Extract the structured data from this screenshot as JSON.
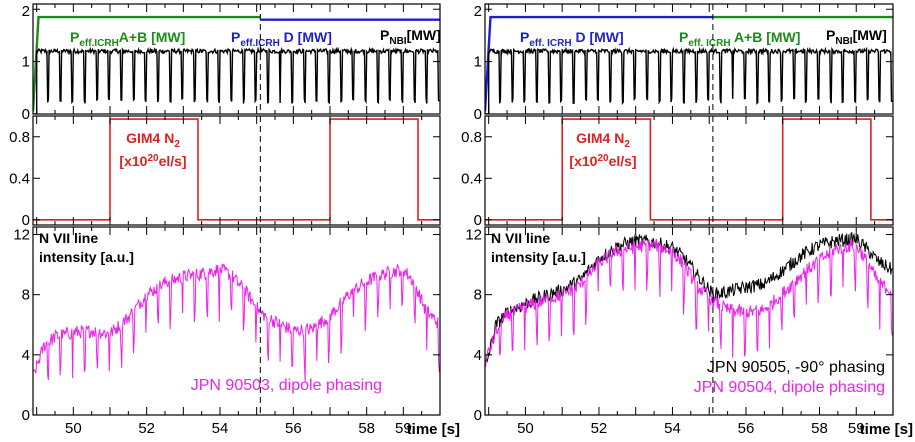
{
  "chart_data": [
    {
      "type": "line",
      "title": "",
      "x_axis": {
        "label": "time [s]",
        "range": [
          48.9,
          60.0
        ],
        "ticks": [
          50,
          52,
          54,
          56,
          58,
          59
        ],
        "tick_labels": [
          "50",
          "52",
          "54",
          "56",
          "58",
          "59"
        ],
        "grid": false
      },
      "marker_line": {
        "x": 55.1,
        "style": "dashed"
      },
      "panels": [
        {
          "id": "power",
          "ylim": [
            0,
            2.1
          ],
          "yticks": [
            0,
            1,
            2
          ],
          "ytick_labels": [
            "0",
            "1",
            "2"
          ],
          "annotations": [
            {
              "base": "P",
              "sub": "eff.ICRH",
              "after": "A+B [MW]",
              "color": "#1a8c1a"
            },
            {
              "base": "P",
              "sub": "eff.ICRH",
              "after": " D [MW]",
              "color": "#1f1fcf"
            },
            {
              "base": "P",
              "sub": "NBI",
              "after": "[MW]",
              "color": "#000000"
            }
          ],
          "series": [
            {
              "label": "P_eff.ICRH A+B",
              "color": "#1a8c1a",
              "segments": [
                {
                  "x": [
                    48.9,
                    49.05,
                    55.1
                  ],
                  "y": [
                    0.05,
                    1.85,
                    1.85
                  ]
                }
              ]
            },
            {
              "label": "P_eff.ICRH D",
              "color": "#1f1fcf",
              "segments": [
                {
                  "x": [
                    55.1,
                    60.0
                  ],
                  "y": [
                    1.8,
                    1.8
                  ]
                }
              ]
            },
            {
              "label": "P_NBI",
              "color": "#000000",
              "baseline": 1.2,
              "notch_min": 0.2,
              "notch_period": 0.333,
              "start": 49.0
            }
          ]
        },
        {
          "id": "gas",
          "ylim": [
            -0.05,
            1.0
          ],
          "yticks": [
            0,
            0.4,
            0.8
          ],
          "ytick_labels": [
            "0",
            "0.4",
            "0.8"
          ],
          "annotations": [
            {
              "line1": "GIM4 N",
              "line1_sub": "2",
              "line2_pre": "[x10",
              "line2_sup": "20",
              "line2_post": "el/s]",
              "color": "#e02020"
            }
          ],
          "series": [
            {
              "label": "GIM4 N2",
              "color": "#e02020",
              "x": [
                48.9,
                51.0,
                51.0,
                53.4,
                53.4,
                57.0,
                57.0,
                59.4,
                59.4,
                60.0
              ],
              "y": [
                0,
                0,
                0.97,
                0.97,
                0,
                0,
                0.97,
                0.97,
                0,
                0
              ]
            }
          ]
        },
        {
          "id": "nvii",
          "ylim": [
            0,
            12.5
          ],
          "yticks": [
            0,
            4,
            8,
            12
          ],
          "ytick_labels": [
            "0",
            "4",
            "8",
            "12"
          ],
          "annotations": [
            {
              "line1": "N VII line",
              "line2": "intensity [a.u.]",
              "color": "#000000"
            }
          ],
          "series": [
            {
              "label": "JPN 90503, dipole phasing",
              "color": "#ee22ee",
              "x": [
                48.9,
                49.2,
                49.5,
                50.0,
                50.5,
                51.0,
                51.5,
                52.0,
                52.5,
                53.0,
                53.5,
                54.0,
                54.3,
                54.7,
                55.1,
                55.5,
                56.0,
                56.5,
                57.0,
                57.5,
                58.0,
                58.5,
                59.0,
                59.3,
                59.6,
                60.0
              ],
              "y": [
                2.5,
                4.6,
                5.2,
                5.5,
                5.6,
                5.4,
                6.5,
                8.0,
                8.8,
                9.2,
                9.4,
                9.7,
                9.3,
                8.2,
                6.8,
                6.2,
                5.6,
                5.7,
                6.6,
                8.0,
                8.9,
                9.4,
                9.7,
                8.8,
                7.0,
                6.0
              ]
            }
          ],
          "legend": [
            {
              "text": "JPN 90503, dipole phasing",
              "color": "#ee22ee"
            }
          ]
        }
      ]
    },
    {
      "type": "line",
      "title": "",
      "x_axis": {
        "label": "time [s]",
        "range": [
          48.9,
          60.0
        ],
        "ticks": [
          50,
          52,
          54,
          56,
          58,
          59
        ],
        "tick_labels": [
          "50",
          "52",
          "54",
          "56",
          "58",
          "59"
        ],
        "grid": false
      },
      "marker_line": {
        "x": 55.1,
        "style": "dashed"
      },
      "panels": [
        {
          "id": "power",
          "ylim": [
            0,
            2.1
          ],
          "yticks": [
            0,
            1,
            2
          ],
          "ytick_labels": [
            "0",
            "1",
            "2"
          ],
          "annotations": [
            {
              "base": "P",
              "sub": "eff. ICRH",
              "after": " D [MW]",
              "color": "#1f1fcf"
            },
            {
              "base": "P",
              "sub": "eff. ICRH",
              "after": " A+B [MW]",
              "color": "#1a8c1a"
            },
            {
              "base": "P",
              "sub": "NBI",
              "after": "[MW]",
              "color": "#000000"
            }
          ],
          "series": [
            {
              "label": "P_eff. ICRH D",
              "color": "#1f1fcf",
              "segments": [
                {
                  "x": [
                    48.9,
                    49.05,
                    55.1
                  ],
                  "y": [
                    0.05,
                    1.85,
                    1.85
                  ]
                }
              ]
            },
            {
              "label": "P_eff. ICRH A+B",
              "color": "#1a8c1a",
              "segments": [
                {
                  "x": [
                    55.1,
                    60.0
                  ],
                  "y": [
                    1.85,
                    1.85
                  ]
                }
              ]
            },
            {
              "label": "P_NBI",
              "color": "#000000",
              "baseline": 1.2,
              "notch_min": 0.2,
              "notch_period": 0.333,
              "start": 49.0
            }
          ]
        },
        {
          "id": "gas",
          "ylim": [
            -0.05,
            1.0
          ],
          "yticks": [
            0,
            0.4,
            0.8
          ],
          "ytick_labels": [
            "0",
            "0.4",
            "0.8"
          ],
          "annotations": [
            {
              "line1": "GIM4 N",
              "line1_sub": "2",
              "line2_pre": "[x10",
              "line2_sup": "20",
              "line2_post": "el/s]",
              "color": "#e02020"
            }
          ],
          "series": [
            {
              "label": "GIM4 N2",
              "color": "#e02020",
              "x": [
                48.9,
                51.0,
                51.0,
                53.4,
                53.4,
                57.0,
                57.0,
                59.4,
                59.4,
                60.0
              ],
              "y": [
                0,
                0,
                0.97,
                0.97,
                0,
                0,
                0.97,
                0.97,
                0,
                0
              ]
            }
          ]
        },
        {
          "id": "nvii",
          "ylim": [
            0,
            12.5
          ],
          "yticks": [
            0,
            4,
            8,
            12
          ],
          "ytick_labels": [
            "0",
            "4",
            "8",
            "12"
          ],
          "annotations": [
            {
              "line1": "N VII line",
              "line2": "intensity [a.u.]",
              "color": "#000000"
            }
          ],
          "series": [
            {
              "label": "JPN 90505, -90° phasing",
              "color": "#000000",
              "x": [
                48.9,
                49.2,
                49.5,
                50.0,
                50.5,
                51.0,
                51.5,
                52.0,
                52.5,
                53.0,
                53.5,
                54.0,
                54.3,
                54.7,
                55.1,
                55.5,
                56.0,
                56.5,
                57.0,
                57.5,
                58.0,
                58.5,
                59.0,
                59.3,
                59.6,
                60.0
              ],
              "y": [
                3.0,
                6.0,
                6.8,
                7.4,
                7.9,
                8.3,
                9.0,
                10.4,
                11.2,
                11.6,
                11.5,
                11.1,
                10.5,
                9.2,
                8.0,
                8.2,
                8.5,
                8.7,
                9.6,
                10.6,
                11.3,
                11.6,
                11.7,
                11.0,
                10.2,
                9.6
              ]
            },
            {
              "label": "JPN 90504, dipole phasing",
              "color": "#ee22ee",
              "x": [
                48.9,
                49.2,
                49.5,
                50.0,
                50.5,
                51.0,
                51.5,
                52.0,
                52.5,
                53.0,
                53.5,
                54.0,
                54.3,
                54.7,
                55.1,
                55.5,
                56.0,
                56.5,
                57.0,
                57.5,
                58.0,
                58.5,
                59.0,
                59.3,
                59.6,
                60.0
              ],
              "y": [
                3.5,
                5.5,
                6.6,
                7.2,
                7.6,
                8.0,
                8.7,
                10.1,
                10.9,
                11.2,
                11.3,
                10.9,
                10.0,
                8.5,
                7.6,
                7.0,
                6.8,
                7.0,
                8.1,
                9.3,
                10.3,
                11.1,
                11.3,
                10.2,
                8.8,
                8.2
              ]
            }
          ],
          "legend": [
            {
              "text": "JPN 90505, -90° phasing",
              "color": "#000000"
            },
            {
              "text": "JPN 90504, dipole phasing",
              "color": "#ee22ee"
            }
          ]
        }
      ]
    }
  ]
}
